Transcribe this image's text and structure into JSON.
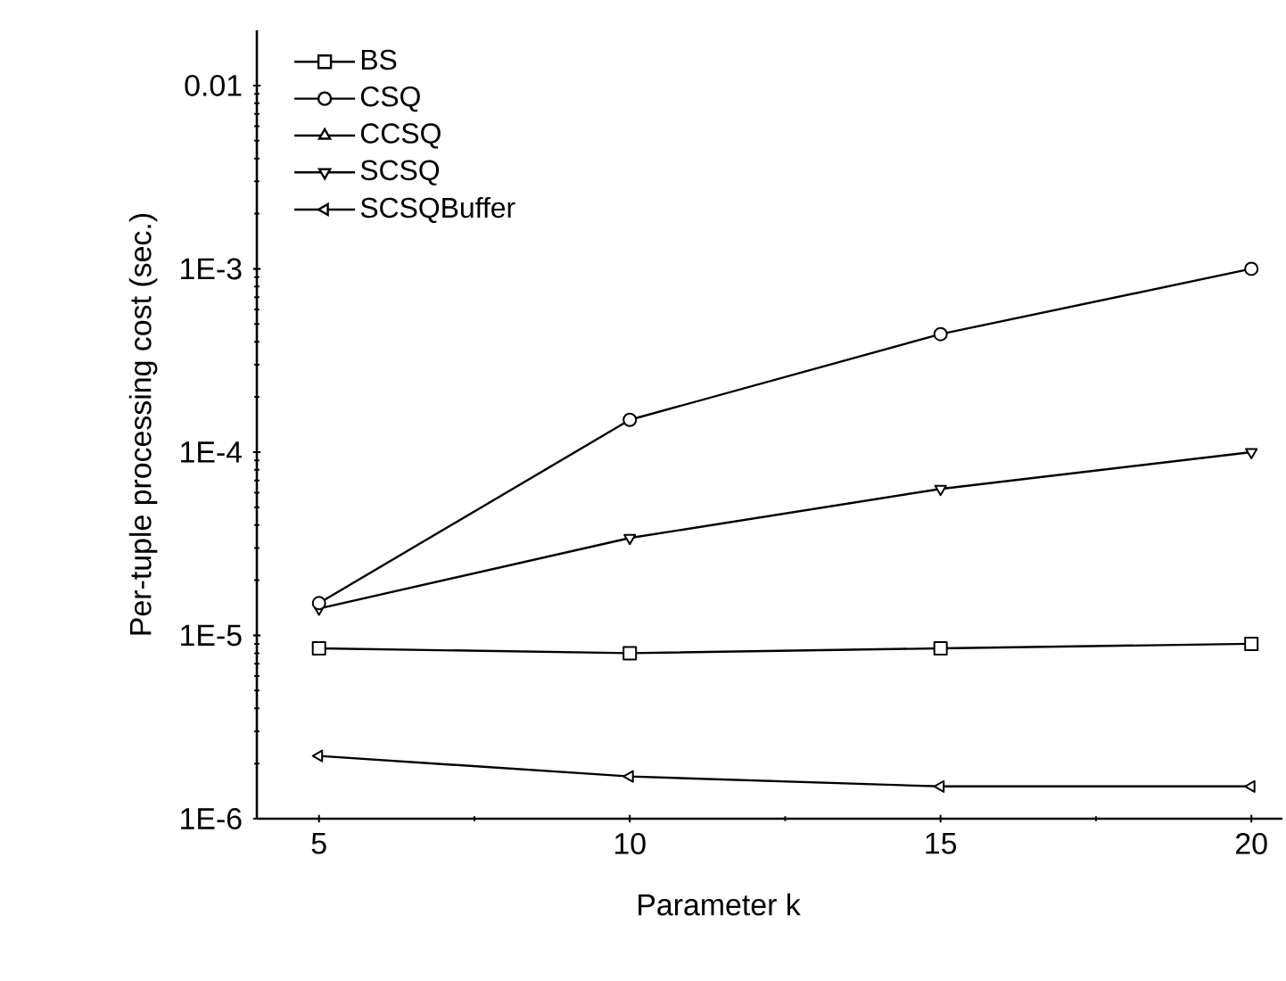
{
  "chart_data": {
    "type": "line",
    "xlabel": "Parameter k",
    "ylabel": "Per-tuple processing cost (sec.)",
    "x": [
      5,
      10,
      15,
      20
    ],
    "series": [
      {
        "name": "BS",
        "color": "#000000",
        "marker": "square",
        "values": [
          8.5e-06,
          8e-06,
          8.5e-06,
          9e-06
        ]
      },
      {
        "name": "CSQ",
        "color": "#000000",
        "marker": "circle",
        "values": [
          1.5e-05,
          0.00015,
          0.00044,
          0.001
        ]
      },
      {
        "name": "CCSQ",
        "color": "#000000",
        "marker": "triangle",
        "values": [
          null,
          null,
          null,
          null
        ]
      },
      {
        "name": "SCSQ",
        "color": "#000000",
        "marker": "triangle-down",
        "values": [
          1.4e-05,
          3.4e-05,
          6.3e-05,
          0.0001
        ]
      },
      {
        "name": "SCSQBuffer",
        "color": "#000000",
        "marker": "triangle-left",
        "values": [
          2.2e-06,
          1.7e-06,
          1.5e-06,
          1.5e-06
        ]
      }
    ],
    "log": "y",
    "xlim": [
      4,
      20.5
    ],
    "xticks": [
      5,
      10,
      15,
      20
    ],
    "ylim": [
      1e-06,
      0.02
    ],
    "yticks": [
      {
        "value": 1e-06,
        "label": "1E-6"
      },
      {
        "value": 1e-05,
        "label": "1E-5"
      },
      {
        "value": 0.0001,
        "label": "1E-4"
      },
      {
        "value": 0.001,
        "label": "1E-3"
      },
      0.01
    ],
    "legend": "top left",
    "grid": false,
    "line_style": "solid"
  }
}
